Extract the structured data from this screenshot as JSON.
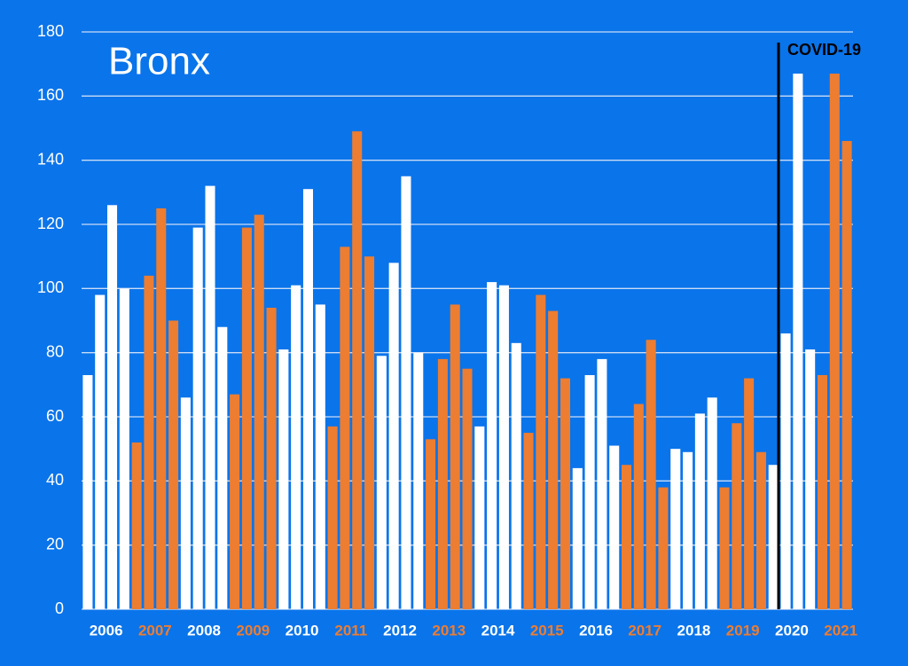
{
  "chart_data": {
    "type": "bar",
    "title": "Bronx",
    "annotation": "COVID-19",
    "ylim": [
      0,
      180
    ],
    "yticks": [
      0,
      20,
      40,
      60,
      80,
      100,
      120,
      140,
      160,
      180
    ],
    "grid": true,
    "groups": [
      {
        "label": "2006",
        "color": "#ffffff",
        "values": [
          73,
          98,
          126,
          100
        ]
      },
      {
        "label": "2007",
        "color": "#ed7d31",
        "values": [
          52,
          104,
          125,
          90
        ]
      },
      {
        "label": "2008",
        "color": "#ffffff",
        "values": [
          66,
          119,
          132,
          88
        ]
      },
      {
        "label": "2009",
        "color": "#ed7d31",
        "values": [
          67,
          119,
          123,
          94
        ]
      },
      {
        "label": "2010",
        "color": "#ffffff",
        "values": [
          81,
          101,
          131,
          95
        ]
      },
      {
        "label": "2011",
        "color": "#ed7d31",
        "values": [
          57,
          113,
          149,
          110
        ]
      },
      {
        "label": "2012",
        "color": "#ffffff",
        "values": [
          79,
          108,
          135,
          80
        ]
      },
      {
        "label": "2013",
        "color": "#ed7d31",
        "values": [
          53,
          78,
          95,
          75
        ]
      },
      {
        "label": "2014",
        "color": "#ffffff",
        "values": [
          57,
          102,
          101,
          83
        ]
      },
      {
        "label": "2015",
        "color": "#ed7d31",
        "values": [
          55,
          98,
          93,
          72
        ]
      },
      {
        "label": "2016",
        "color": "#ffffff",
        "values": [
          44,
          73,
          78,
          51
        ]
      },
      {
        "label": "2017",
        "color": "#ed7d31",
        "values": [
          45,
          64,
          84,
          38
        ]
      },
      {
        "label": "2018",
        "color": "#ffffff",
        "values": [
          50,
          49,
          61,
          66
        ]
      },
      {
        "label": "2019",
        "color": "#ed7d31",
        "values": [
          38,
          58,
          72,
          49
        ]
      },
      {
        "label": "2020",
        "color": "#ffffff",
        "values": [
          45,
          86,
          167,
          81
        ]
      },
      {
        "label": "2021",
        "color": "#ed7d31",
        "values": [
          73,
          167,
          146
        ]
      }
    ]
  }
}
